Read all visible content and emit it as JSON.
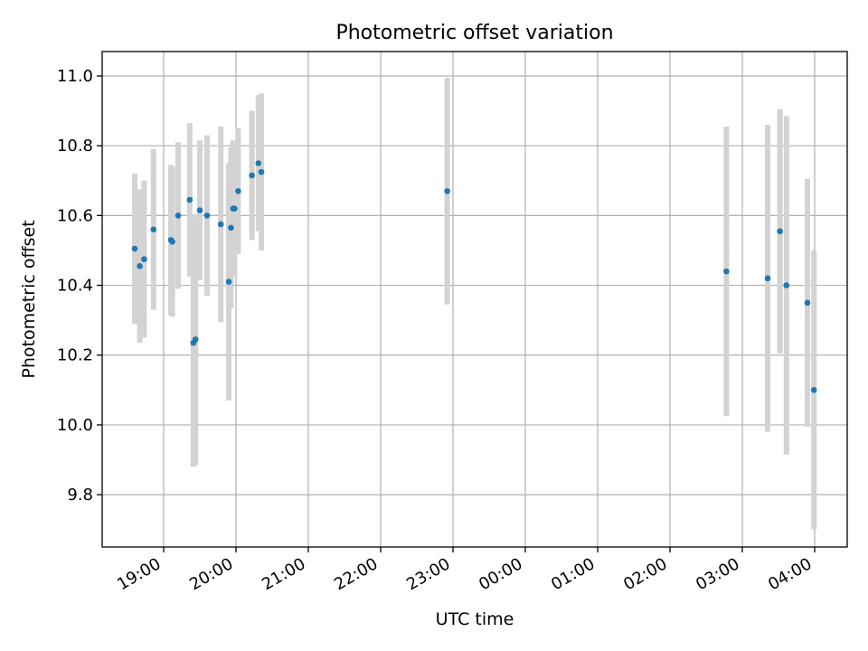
{
  "chart_data": {
    "type": "scatter",
    "title": "Photometric offset variation",
    "xlabel": "UTC time",
    "ylabel": "Photometric offset",
    "grid": true,
    "x_axis": "time of day, hours after 19:00 on the first night",
    "xlim": [
      -0.85,
      9.45
    ],
    "ylim": [
      9.65,
      11.07
    ],
    "x_ticks": [
      {
        "t": 0,
        "label": "19:00"
      },
      {
        "t": 1,
        "label": "20:00"
      },
      {
        "t": 2,
        "label": "21:00"
      },
      {
        "t": 3,
        "label": "22:00"
      },
      {
        "t": 4,
        "label": "23:00"
      },
      {
        "t": 5,
        "label": "00:00"
      },
      {
        "t": 6,
        "label": "01:00"
      },
      {
        "t": 7,
        "label": "02:00"
      },
      {
        "t": 8,
        "label": "03:00"
      },
      {
        "t": 9,
        "label": "04:00"
      }
    ],
    "y_ticks": [
      9.8,
      10.0,
      10.2,
      10.4,
      10.6,
      10.8,
      11.0
    ],
    "y_tick_labels": [
      "9.8",
      "10.0",
      "10.2",
      "10.4",
      "10.6",
      "10.8",
      "11.0"
    ],
    "colors": {
      "points": "#1f77b4",
      "errorbars": "#d3d3d3"
    },
    "series": [
      {
        "points": [
          {
            "t": -0.4,
            "y": 10.505,
            "err": 0.215
          },
          {
            "t": -0.33,
            "y": 10.455,
            "err": 0.22
          },
          {
            "t": -0.27,
            "y": 10.475,
            "err": 0.225
          },
          {
            "t": -0.14,
            "y": 10.56,
            "err": 0.23
          },
          {
            "t": 0.1,
            "y": 10.53,
            "err": 0.215
          },
          {
            "t": 0.12,
            "y": 10.525,
            "err": 0.215
          },
          {
            "t": 0.2,
            "y": 10.6,
            "err": 0.21
          },
          {
            "t": 0.36,
            "y": 10.645,
            "err": 0.22
          },
          {
            "t": 0.41,
            "y": 10.235,
            "err": 0.355
          },
          {
            "t": 0.44,
            "y": 10.245,
            "err": 0.36
          },
          {
            "t": 0.5,
            "y": 10.615,
            "err": 0.2
          },
          {
            "t": 0.6,
            "y": 10.6,
            "err": 0.23
          },
          {
            "t": 0.79,
            "y": 10.575,
            "err": 0.28
          },
          {
            "t": 0.9,
            "y": 10.41,
            "err": 0.34
          },
          {
            "t": 0.93,
            "y": 10.565,
            "err": 0.23
          },
          {
            "t": 0.96,
            "y": 10.62,
            "err": 0.195
          },
          {
            "t": 0.98,
            "y": 10.62,
            "err": 0.195
          },
          {
            "t": 1.03,
            "y": 10.67,
            "err": 0.18
          },
          {
            "t": 1.22,
            "y": 10.715,
            "err": 0.185
          },
          {
            "t": 1.31,
            "y": 10.75,
            "err": 0.195
          },
          {
            "t": 1.35,
            "y": 10.725,
            "err": 0.225
          },
          {
            "t": 3.92,
            "y": 10.67,
            "err": 0.325
          },
          {
            "t": 7.78,
            "y": 10.44,
            "err": 0.415
          },
          {
            "t": 8.35,
            "y": 10.42,
            "err": 0.44
          },
          {
            "t": 8.52,
            "y": 10.555,
            "err": 0.35
          },
          {
            "t": 8.61,
            "y": 10.4,
            "err": 0.485
          },
          {
            "t": 8.9,
            "y": 10.35,
            "err": 0.355
          },
          {
            "t": 8.99,
            "y": 10.1,
            "err": 0.4
          }
        ]
      }
    ]
  }
}
